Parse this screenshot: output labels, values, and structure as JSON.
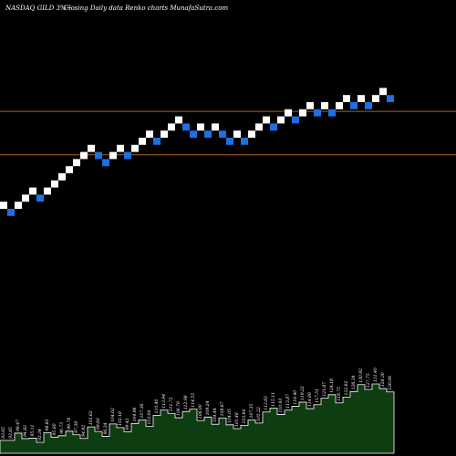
{
  "header": {
    "ticker": "NASDAQ GILD 3%~",
    "subtitle": "Closing Daily data  Renko  charts MunafaSutra.com"
  },
  "colors": {
    "background": "#000000",
    "up_brick": "#ffffff",
    "down_brick": "#1e6fe0",
    "reference_line": "#a9621c",
    "volume_fill": "#0f3d12",
    "volume_outline": "#ffffff"
  },
  "chart_data": {
    "type": "renko",
    "brick_size_label": "3%",
    "bricks": [
      {
        "dir": "up",
        "level": 1
      },
      {
        "dir": "down",
        "level": 0
      },
      {
        "dir": "up",
        "level": 1
      },
      {
        "dir": "up",
        "level": 2
      },
      {
        "dir": "up",
        "level": 3
      },
      {
        "dir": "down",
        "level": 2
      },
      {
        "dir": "up",
        "level": 3
      },
      {
        "dir": "up",
        "level": 4
      },
      {
        "dir": "up",
        "level": 5
      },
      {
        "dir": "up",
        "level": 6
      },
      {
        "dir": "up",
        "level": 7
      },
      {
        "dir": "up",
        "level": 8
      },
      {
        "dir": "up",
        "level": 9
      },
      {
        "dir": "down",
        "level": 8
      },
      {
        "dir": "down",
        "level": 7
      },
      {
        "dir": "up",
        "level": 8
      },
      {
        "dir": "up",
        "level": 9
      },
      {
        "dir": "down",
        "level": 8
      },
      {
        "dir": "up",
        "level": 9
      },
      {
        "dir": "up",
        "level": 10
      },
      {
        "dir": "up",
        "level": 11
      },
      {
        "dir": "down",
        "level": 10
      },
      {
        "dir": "up",
        "level": 11
      },
      {
        "dir": "up",
        "level": 12
      },
      {
        "dir": "up",
        "level": 13
      },
      {
        "dir": "down",
        "level": 12
      },
      {
        "dir": "down",
        "level": 11
      },
      {
        "dir": "up",
        "level": 12
      },
      {
        "dir": "down",
        "level": 11
      },
      {
        "dir": "up",
        "level": 12
      },
      {
        "dir": "down",
        "level": 11
      },
      {
        "dir": "down",
        "level": 10
      },
      {
        "dir": "up",
        "level": 11
      },
      {
        "dir": "down",
        "level": 10
      },
      {
        "dir": "up",
        "level": 11
      },
      {
        "dir": "up",
        "level": 12
      },
      {
        "dir": "up",
        "level": 13
      },
      {
        "dir": "down",
        "level": 12
      },
      {
        "dir": "up",
        "level": 13
      },
      {
        "dir": "up",
        "level": 14
      },
      {
        "dir": "down",
        "level": 13
      },
      {
        "dir": "up",
        "level": 14
      },
      {
        "dir": "up",
        "level": 15
      },
      {
        "dir": "down",
        "level": 14
      },
      {
        "dir": "up",
        "level": 15
      },
      {
        "dir": "down",
        "level": 14
      },
      {
        "dir": "up",
        "level": 15
      },
      {
        "dir": "up",
        "level": 16
      },
      {
        "dir": "down",
        "level": 15
      },
      {
        "dir": "up",
        "level": 16
      },
      {
        "dir": "down",
        "level": 15
      },
      {
        "dir": "up",
        "level": 16
      },
      {
        "dir": "up",
        "level": 17
      },
      {
        "dir": "down",
        "level": 16
      }
    ],
    "reference_lines": [
      {
        "label": "",
        "level": 14.2
      },
      {
        "label": "",
        "level": 8.1
      }
    ],
    "volume_labels": [
      "93.65",
      "93.65",
      "98.47",
      "94.82",
      "95.11",
      "92.34",
      "98.82",
      "95.80",
      "96.73",
      "99.78",
      "97.39",
      "94.92",
      "102.62",
      "99.60",
      "96.34",
      "104.62",
      "102.18",
      "99.42",
      "104.96",
      "107.36",
      "103.04",
      "110.40",
      "113.94",
      "111.72",
      "108.79",
      "112.98",
      "114.55",
      "106.90",
      "109.24",
      "104.44",
      "108.67",
      "104.05",
      "101.48",
      "103.64",
      "107.35",
      "105.22",
      "112.65",
      "115.11",
      "110.93",
      "113.87",
      "116.40",
      "119.22",
      "114.89",
      "117.51",
      "121.87",
      "124.18",
      "118.75",
      "122.62",
      "126.34",
      "130.92",
      "127.75",
      "131.40",
      "128.30",
      "126.06"
    ]
  }
}
